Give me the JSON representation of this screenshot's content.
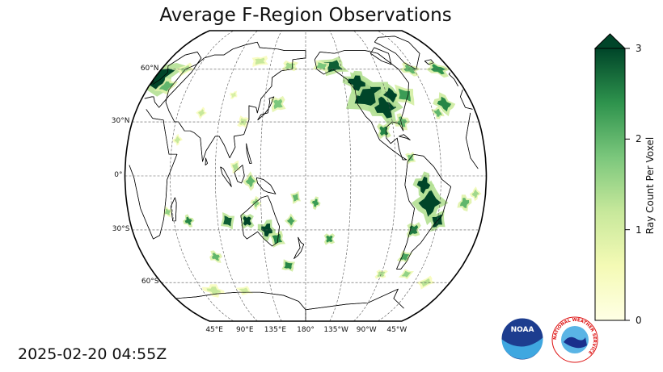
{
  "title": "Average F-Region Observations",
  "timestamp": "2025-02-20 04:55Z",
  "map": {
    "projection": "Robinson",
    "central_longitude": 180,
    "lat_labels": [
      "60°N",
      "30°N",
      "0°",
      "30°S",
      "60°S"
    ],
    "lon_labels": [
      "45°E",
      "90°E",
      "135°E",
      "180°",
      "135°W",
      "90°W",
      "45°W"
    ]
  },
  "colorbar": {
    "label": "Ray Count Per Voxel",
    "ticks": [
      "0",
      "1",
      "2",
      "3"
    ],
    "range": [
      0,
      3
    ],
    "extend": "max",
    "colormap": "Greens",
    "low_color": "#ffffe5",
    "high_color": "#004529"
  },
  "logos": [
    {
      "name": "noaa-logo",
      "text": "NOAA"
    },
    {
      "name": "nws-logo",
      "text": "NATIONAL WEATHER SERVICE"
    }
  ]
}
